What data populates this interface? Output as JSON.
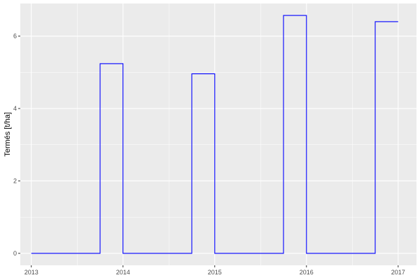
{
  "chart_data": {
    "type": "line",
    "step": true,
    "title": "",
    "xlabel": "",
    "ylabel": "Termés [t/ha]",
    "xlim": [
      2012.88,
      2017.2
    ],
    "ylim": [
      -0.33,
      6.9
    ],
    "x_ticks": [
      2013,
      2014,
      2015,
      2016,
      2017
    ],
    "y_ticks": [
      0,
      2,
      4,
      6
    ],
    "grid": true,
    "line_color": "#0000FF",
    "series": [
      {
        "x": [
          2013,
          2013.75,
          2013.75,
          2014,
          2014,
          2014.75,
          2014.75,
          2015,
          2015,
          2015.75,
          2015.75,
          2016,
          2016,
          2016.75,
          2016.75,
          2017
        ],
        "values": [
          0,
          0,
          5.24,
          5.24,
          0,
          0,
          4.96,
          4.96,
          0,
          0,
          6.57,
          6.57,
          0,
          0,
          6.4,
          6.4
        ]
      }
    ]
  }
}
